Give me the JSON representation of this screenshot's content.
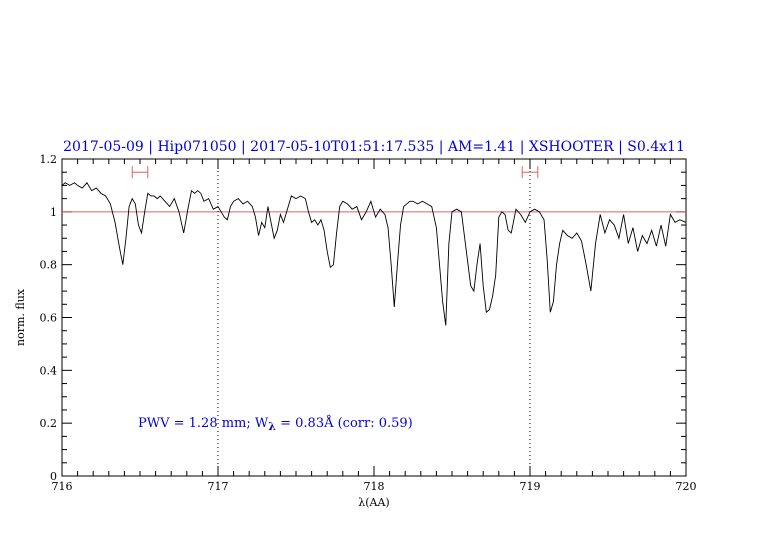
{
  "chart_data": {
    "type": "line",
    "title": "2017-05-09 | Hip071050 | 2017-05-10T01:51:17.535 | AM=1.41 | XSHOOTER | S0.4x11",
    "xlabel": "λ(AA)",
    "ylabel": "norm. flux",
    "xlim": [
      716,
      720
    ],
    "ylim": [
      0,
      1.2
    ],
    "xticks": [
      716,
      717,
      718,
      719,
      720
    ],
    "xtick_labels": [
      "716",
      "717",
      "718",
      "719",
      "720"
    ],
    "yticks": [
      0,
      0.2,
      0.4,
      0.6,
      0.8,
      1,
      1.2
    ],
    "ytick_labels": [
      "0",
      "0.2",
      "0.4",
      "0.6",
      "0.8",
      "1",
      "1.2"
    ],
    "grid": false,
    "annotation": {
      "prefix": "PWV = 1.28 mm; W",
      "subscript": "λ",
      "suffix": " = 0.83Å (corr: 0.59)"
    },
    "reference_line": {
      "y": 1.0,
      "color": "#e06060"
    },
    "vertical_lines": [
      717.0,
      719.0
    ],
    "ranges": [
      {
        "from": 716.45,
        "to": 716.55,
        "y": 1.15
      },
      {
        "from": 718.95,
        "to": 719.05,
        "y": 1.15
      }
    ],
    "line_color": "#000000",
    "title_color": "#0000e0",
    "series": [
      {
        "x": [
          716.0,
          716.02,
          716.05,
          716.08,
          716.1,
          716.13,
          716.16,
          716.19,
          716.22,
          716.25,
          716.28,
          716.31,
          716.34,
          716.37,
          716.39,
          716.41,
          716.43,
          716.45,
          716.47,
          716.49,
          716.51,
          716.53,
          716.55,
          716.57,
          716.59,
          716.61,
          716.63,
          716.66,
          716.69,
          716.72,
          716.75,
          716.78,
          716.81,
          716.83,
          716.85,
          716.87,
          716.89,
          716.91,
          716.94,
          716.97,
          717.0,
          717.02,
          717.04,
          717.06,
          717.08,
          717.1,
          717.13,
          717.16,
          717.19,
          717.22,
          717.24,
          717.26,
          717.28,
          717.3,
          717.32,
          717.34,
          717.36,
          717.38,
          717.4,
          717.42,
          717.44,
          717.47,
          717.5,
          717.53,
          717.56,
          717.58,
          717.6,
          717.62,
          717.64,
          717.66,
          717.68,
          717.7,
          717.72,
          717.74,
          717.76,
          717.78,
          717.8,
          717.83,
          717.86,
          717.89,
          717.92,
          717.95,
          717.98,
          718.01,
          718.04,
          718.07,
          718.09,
          718.11,
          718.13,
          718.15,
          718.17,
          718.19,
          718.21,
          718.23,
          718.25,
          718.28,
          718.31,
          718.34,
          718.37,
          718.4,
          718.42,
          718.44,
          718.46,
          718.48,
          718.5,
          718.53,
          718.56,
          718.59,
          718.62,
          718.64,
          718.66,
          718.68,
          718.7,
          718.72,
          718.74,
          718.76,
          718.78,
          718.8,
          718.82,
          718.84,
          718.86,
          718.88,
          718.91,
          718.94,
          718.97,
          719.0,
          719.03,
          719.06,
          719.09,
          719.11,
          719.13,
          719.15,
          719.17,
          719.19,
          719.21,
          719.24,
          719.27,
          719.3,
          719.33,
          719.36,
          719.39,
          719.42,
          719.45,
          719.48,
          719.51,
          719.54,
          719.57,
          719.6,
          719.63,
          719.66,
          719.69,
          719.72,
          719.75,
          719.78,
          719.81,
          719.84,
          719.87,
          719.9,
          719.93,
          719.96,
          720.0
        ],
        "y": [
          1.1,
          1.11,
          1.1,
          1.11,
          1.1,
          1.09,
          1.11,
          1.08,
          1.09,
          1.07,
          1.06,
          1.03,
          0.96,
          0.86,
          0.8,
          0.9,
          1.02,
          1.05,
          1.03,
          0.95,
          0.92,
          1.0,
          1.07,
          1.06,
          1.06,
          1.05,
          1.06,
          1.04,
          1.02,
          1.05,
          1.0,
          0.92,
          1.02,
          1.08,
          1.07,
          1.08,
          1.07,
          1.04,
          1.05,
          1.01,
          1.02,
          1.0,
          0.98,
          0.97,
          1.02,
          1.04,
          1.05,
          1.03,
          1.04,
          1.02,
          0.98,
          0.91,
          0.96,
          0.94,
          1.02,
          0.96,
          0.9,
          0.93,
          0.99,
          0.96,
          1.0,
          1.06,
          1.05,
          1.06,
          1.05,
          1.0,
          0.96,
          0.97,
          0.95,
          0.97,
          0.93,
          0.85,
          0.79,
          0.8,
          0.92,
          1.02,
          1.04,
          1.03,
          1.01,
          1.02,
          0.97,
          1.0,
          1.04,
          0.98,
          1.01,
          0.99,
          0.94,
          0.8,
          0.64,
          0.8,
          0.95,
          1.02,
          1.03,
          1.04,
          1.04,
          1.03,
          1.04,
          1.03,
          1.02,
          0.94,
          0.8,
          0.66,
          0.57,
          0.88,
          1.0,
          1.01,
          1.0,
          0.86,
          0.72,
          0.7,
          0.8,
          0.88,
          0.72,
          0.62,
          0.63,
          0.68,
          0.76,
          0.98,
          1.0,
          0.99,
          0.93,
          0.92,
          1.01,
          0.99,
          0.96,
          1.0,
          1.01,
          1.0,
          0.97,
          0.82,
          0.62,
          0.66,
          0.8,
          0.88,
          0.93,
          0.91,
          0.9,
          0.92,
          0.89,
          0.8,
          0.7,
          0.88,
          0.99,
          0.92,
          0.97,
          0.95,
          0.9,
          0.99,
          0.88,
          0.94,
          0.85,
          0.91,
          0.88,
          0.93,
          0.87,
          0.95,
          0.87,
          0.99,
          0.96,
          0.97,
          0.96
        ]
      }
    ]
  }
}
